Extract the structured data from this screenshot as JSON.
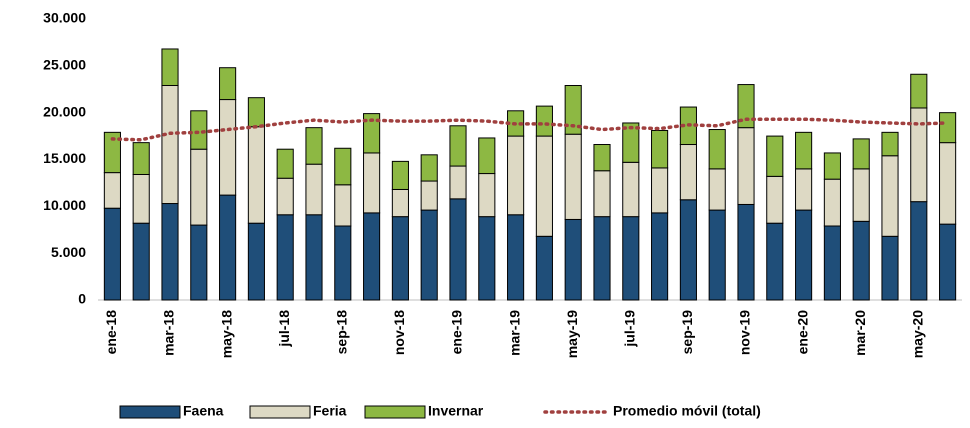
{
  "chart_data": {
    "type": "bar",
    "stacked": true,
    "categories": [
      "ene-18",
      null,
      "mar-18",
      null,
      "may-18",
      null,
      "jul-18",
      null,
      "sep-18",
      null,
      "nov-18",
      null,
      "ene-19",
      null,
      "mar-19",
      null,
      "may-19",
      null,
      "jul-19",
      null,
      "sep-19",
      null,
      "nov-19",
      null,
      "ene-20",
      null,
      "mar-20",
      null,
      "may-20",
      null
    ],
    "series": [
      {
        "name": "Faena",
        "color": "#1f4e79",
        "values": [
          9800,
          8200,
          10300,
          8000,
          11200,
          8200,
          9100,
          9100,
          7900,
          9300,
          8900,
          9600,
          10800,
          8900,
          9100,
          6800,
          8600,
          8900,
          8900,
          9300,
          10700,
          9600,
          10200,
          8200,
          9600,
          7900,
          8400,
          6800,
          10500,
          8100
        ]
      },
      {
        "name": "Feria",
        "color": "#ddd9c4",
        "values": [
          3800,
          5200,
          12600,
          8100,
          10200,
          10300,
          3900,
          5400,
          4400,
          6400,
          2900,
          3100,
          3500,
          4600,
          8400,
          10700,
          9100,
          4900,
          5800,
          4800,
          5900,
          4400,
          8200,
          5000,
          4400,
          5000,
          5600,
          8600,
          10000,
          8700
        ]
      },
      {
        "name": "Invernar",
        "color": "#8db843",
        "values": [
          4300,
          3400,
          3900,
          4100,
          3400,
          3100,
          3100,
          3900,
          3900,
          4200,
          3000,
          2800,
          4300,
          3800,
          2700,
          3200,
          5200,
          2800,
          4200,
          4000,
          4000,
          4200,
          4600,
          4300,
          3900,
          2800,
          3200,
          2500,
          3600,
          3200
        ]
      },
      {
        "name": "Promedio móvil (total)",
        "color": "#a0403f",
        "type": "line",
        "values": [
          17200,
          17100,
          17800,
          17900,
          18200,
          18500,
          18900,
          19200,
          19000,
          19200,
          19100,
          19100,
          19200,
          19100,
          18800,
          18800,
          18600,
          18200,
          18400,
          18300,
          18700,
          18600,
          19300,
          19300,
          19300,
          19200,
          19000,
          18900,
          18800,
          18900
        ]
      }
    ],
    "ylim": [
      0,
      30000
    ],
    "yticks": [
      0,
      {
        "value": 5000,
        "label": "5.000"
      },
      {
        "value": 10000,
        "label": "10.000"
      },
      {
        "value": 15000,
        "label": "15.000"
      },
      {
        "value": 20000,
        "label": "20.000"
      },
      {
        "value": 25000,
        "label": "25.000"
      },
      {
        "value": 30000,
        "label": "30.000"
      }
    ],
    "grid": false,
    "legend": "bottom"
  }
}
